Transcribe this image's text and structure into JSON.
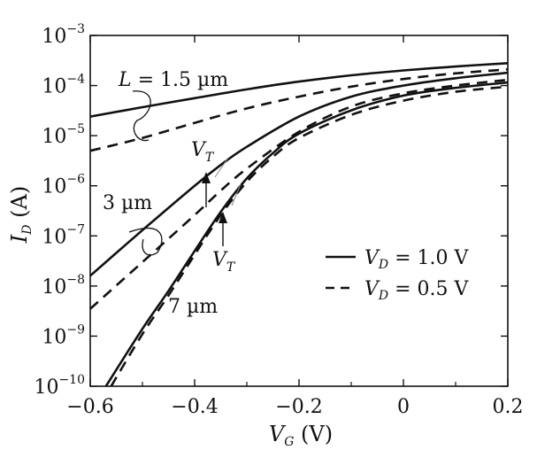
{
  "chart_data": {
    "type": "line",
    "title": "",
    "xlabel": {
      "main": "V",
      "sub": "G",
      "unit": " (V)"
    },
    "ylabel": {
      "main": "I",
      "sub": "D",
      "unit": " (A)"
    },
    "xlim": [
      -0.6,
      0.2
    ],
    "ylim_exponent": [
      -10,
      -3
    ],
    "y_scale": "log",
    "x_ticks": [
      -0.6,
      -0.4,
      -0.2,
      0,
      0.2
    ],
    "x_tick_labels": [
      "−0.6",
      "−0.4",
      "−0.2",
      "0",
      "0.2"
    ],
    "y_tick_labels": [
      {
        "base": "10",
        "exp": "−3"
      },
      {
        "base": "10",
        "exp": "−4"
      },
      {
        "base": "10",
        "exp": "−5"
      },
      {
        "base": "10",
        "exp": "−6"
      },
      {
        "base": "10",
        "exp": "−7"
      },
      {
        "base": "10",
        "exp": "−8"
      },
      {
        "base": "10",
        "exp": "−9"
      },
      {
        "base": "10",
        "exp": "−10"
      }
    ],
    "y_tick_exponents": [
      -3,
      -4,
      -5,
      -6,
      -7,
      -8,
      -9,
      -10
    ],
    "grid": false,
    "legend": {
      "placement": "right-middle",
      "entries": [
        {
          "style": "solid",
          "main": "V",
          "sub": "D",
          "rest": " = 1.0 V"
        },
        {
          "style": "dashed",
          "main": "V",
          "sub": "D",
          "rest": " = 0.5 V"
        }
      ]
    },
    "series": [
      {
        "group": "L = 1.5 µm",
        "vd": "1.0 V",
        "style": "solid",
        "x": [
          -0.6,
          -0.5,
          -0.4,
          -0.3,
          -0.2,
          -0.1,
          0.0,
          0.1,
          0.2
        ],
        "y": [
          2.4e-05,
          3.7e-05,
          5.6e-05,
          8.4e-05,
          0.00012,
          0.00016,
          0.0002,
          0.00024,
          0.00028
        ]
      },
      {
        "group": "L = 1.5 µm",
        "vd": "0.5 V",
        "style": "dashed",
        "x": [
          -0.6,
          -0.5,
          -0.4,
          -0.3,
          -0.2,
          -0.1,
          0.0,
          0.1,
          0.2
        ],
        "y": [
          5e-06,
          9e-06,
          1.8e-05,
          3.5e-05,
          6e-05,
          9.5e-05,
          0.000135,
          0.000175,
          0.00021
        ]
      },
      {
        "group": "3 µm",
        "vd": "1.0 V",
        "style": "solid",
        "x": [
          -0.6,
          -0.5,
          -0.4,
          -0.35,
          -0.3,
          -0.2,
          -0.1,
          0.0,
          0.1,
          0.2
        ],
        "y": [
          1.6e-08,
          1.3e-07,
          1e-06,
          2.6e-06,
          6e-06,
          2.4e-05,
          6e-05,
          0.0001,
          0.00014,
          0.00018
        ]
      },
      {
        "group": "3 µm",
        "vd": "0.5 V",
        "style": "dashed",
        "x": [
          -0.6,
          -0.5,
          -0.4,
          -0.35,
          -0.3,
          -0.2,
          -0.1,
          0.0,
          0.1,
          0.2
        ],
        "y": [
          3.5e-09,
          3e-08,
          2.6e-07,
          8e-07,
          2.2e-06,
          1.2e-05,
          3.8e-05,
          7e-05,
          0.0001,
          0.00013
        ]
      },
      {
        "group": "7 µm",
        "vd": "1.0 V",
        "style": "solid",
        "x": [
          -0.57,
          -0.5,
          -0.45,
          -0.4,
          -0.35,
          -0.3,
          -0.25,
          -0.2,
          -0.1,
          0.0,
          0.1,
          0.2
        ],
        "y": [
          1e-10,
          1.4e-09,
          8e-09,
          5e-08,
          3e-07,
          1.4e-06,
          4.5e-06,
          1.1e-05,
          3.2e-05,
          6.3e-05,
          9e-05,
          0.000115
        ]
      },
      {
        "group": "7 µm",
        "vd": "0.5 V",
        "style": "dashed",
        "x": [
          -0.56,
          -0.5,
          -0.45,
          -0.4,
          -0.35,
          -0.3,
          -0.25,
          -0.2,
          -0.1,
          0.0,
          0.1,
          0.2
        ],
        "y": [
          1e-10,
          1.1e-09,
          6.5e-09,
          4.2e-08,
          2.6e-07,
          1.2e-06,
          3.8e-06,
          9e-06,
          2.6e-05,
          5e-05,
          7.5e-05,
          9.5e-05
        ]
      }
    ],
    "annotations": [
      {
        "kind": "group-label",
        "main": "L",
        "rest": " = 1.5 µm"
      },
      {
        "kind": "group-label",
        "main": "",
        "rest": "3 µm"
      },
      {
        "kind": "group-label",
        "main": "",
        "rest": "7 µm"
      },
      {
        "kind": "threshold",
        "main": "V",
        "sub": "T",
        "x": -0.38,
        "y": 1.8e-06
      },
      {
        "kind": "threshold",
        "main": "V",
        "sub": "T",
        "x": -0.35,
        "y": 2.5e-07
      }
    ]
  }
}
